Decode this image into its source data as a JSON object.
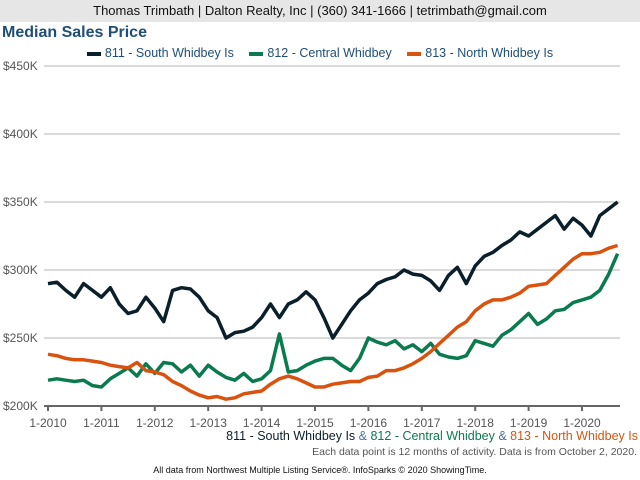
{
  "header": {
    "contact": "Thomas Trimbath | Dalton Realty, Inc | (360) 341-1666 | tetrimbath@gmail.com"
  },
  "chart_data": {
    "type": "line",
    "title": "Median Sales Price",
    "xlabel": "",
    "ylabel": "",
    "ylim": [
      200,
      450
    ],
    "y_ticks": [
      200,
      250,
      300,
      350,
      400,
      450
    ],
    "y_tick_labels": [
      "$200K",
      "$250K",
      "$300K",
      "$350K",
      "$400K",
      "$450K"
    ],
    "x_tick_labels": [
      "1-2010",
      "1-2011",
      "1-2012",
      "1-2013",
      "1-2014",
      "1-2015",
      "1-2016",
      "1-2017",
      "1-2018",
      "1-2019",
      "1-2020"
    ],
    "x_step_months": 2,
    "x_start": "1-2010",
    "grid": true,
    "legend_position": "top-center",
    "series": [
      {
        "name": "811 - South Whidbey Is",
        "color": "#0b1f2a",
        "values": [
          290,
          291,
          285,
          280,
          290,
          285,
          280,
          287,
          275,
          268,
          270,
          280,
          272,
          262,
          285,
          287,
          286,
          280,
          270,
          265,
          250,
          254,
          255,
          258,
          265,
          275,
          265,
          275,
          278,
          284,
          278,
          265,
          250,
          260,
          270,
          278,
          283,
          290,
          293,
          295,
          300,
          297,
          296,
          292,
          285,
          296,
          302,
          290,
          303,
          310,
          313,
          318,
          322,
          328,
          325,
          330,
          335,
          340,
          330,
          338,
          333,
          325,
          340,
          345,
          350
        ]
      },
      {
        "name": "812 - Central Whidbey",
        "color": "#0a7a4f",
        "values": [
          219,
          220,
          219,
          218,
          219,
          215,
          214,
          220,
          224,
          228,
          222,
          231,
          224,
          232,
          231,
          225,
          230,
          222,
          230,
          225,
          221,
          219,
          224,
          218,
          220,
          226,
          253,
          225,
          226,
          230,
          233,
          235,
          235,
          230,
          226,
          235,
          250,
          247,
          245,
          248,
          242,
          245,
          240,
          246,
          238,
          236,
          235,
          237,
          248,
          246,
          244,
          252,
          256,
          262,
          268,
          260,
          264,
          270,
          271,
          276,
          278,
          280,
          285,
          297,
          312
        ]
      },
      {
        "name": "813 - North Whidbey Is",
        "color": "#d9530f",
        "values": [
          238,
          237,
          235,
          234,
          234,
          233,
          232,
          230,
          229,
          228,
          232,
          226,
          225,
          223,
          218,
          215,
          211,
          208,
          206,
          207,
          205,
          206,
          209,
          210,
          211,
          216,
          220,
          222,
          220,
          217,
          214,
          214,
          216,
          217,
          218,
          218,
          221,
          222,
          226,
          226,
          228,
          231,
          235,
          240,
          246,
          252,
          258,
          262,
          270,
          275,
          278,
          278,
          280,
          283,
          288,
          289,
          290,
          296,
          302,
          308,
          312,
          312,
          313,
          316,
          318
        ]
      }
    ]
  },
  "subtitle": {
    "s1": "811 - South Whidbey Is",
    "amp1": " & ",
    "s2": "812 - Central Whidbey",
    "amp2": " & ",
    "s3": "813 - North Whidbey Is"
  },
  "note": "Each data point is 12 months of activity. Data is from October 2, 2020.",
  "footer": "All data from Northwest Multiple Listing Service®. InfoSparks © 2020 ShowingTime."
}
